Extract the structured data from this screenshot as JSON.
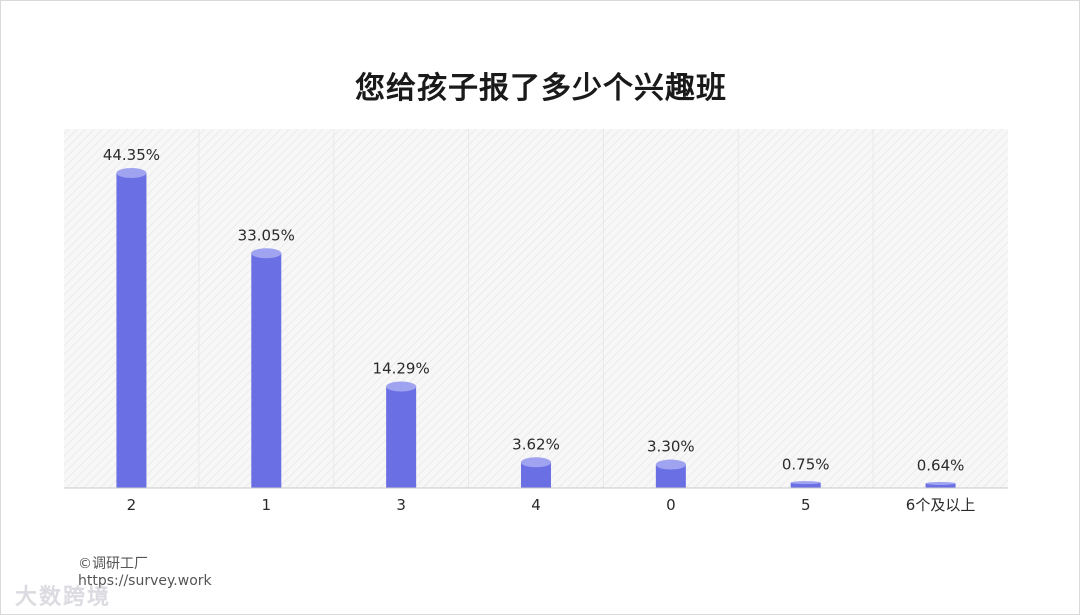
{
  "source": {
    "credit": "©调研工厂",
    "url": "https://survey.work"
  },
  "watermark": "大数跨境",
  "colors": {
    "bar": "#6a6fe3",
    "bar_top": "#9fa3f0",
    "grid_band": "#f2f2f2",
    "hatch": "#e6e6e6",
    "axis": "#c8c8c8"
  },
  "chart_data": {
    "type": "bar",
    "title": "您给孩子报了多少个兴趣班",
    "categories": [
      "2",
      "1",
      "3",
      "4",
      "0",
      "5",
      "6个及以上"
    ],
    "values": [
      44.35,
      33.05,
      14.29,
      3.62,
      3.3,
      0.75,
      0.64
    ],
    "value_labels": [
      "44.35%",
      "33.05%",
      "14.29%",
      "3.62%",
      "3.30%",
      "0.75%",
      "0.64%"
    ],
    "unit": "%",
    "ylim": [
      0,
      44.35
    ],
    "grid": false,
    "legend": "none"
  }
}
